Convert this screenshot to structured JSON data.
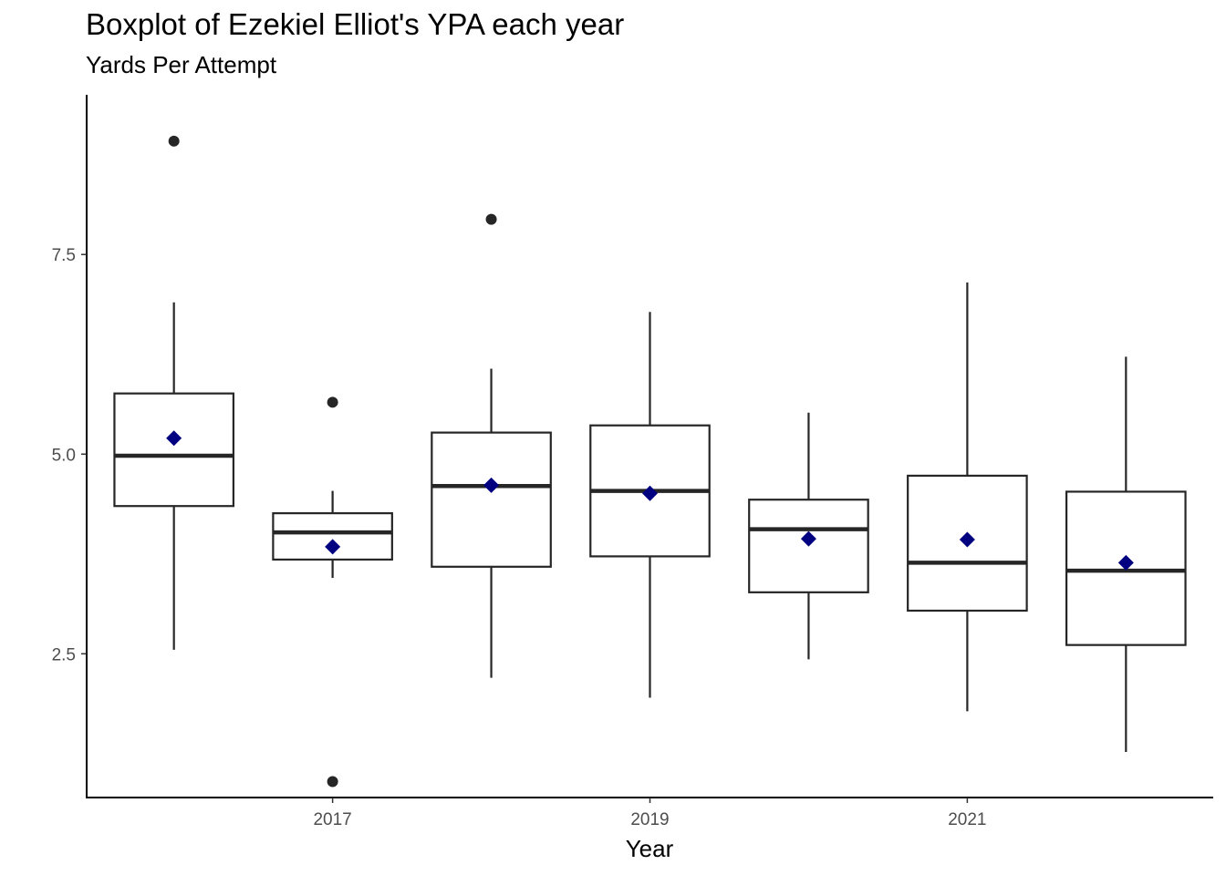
{
  "chart_data": {
    "type": "boxplot",
    "title": "Boxplot of Ezekiel Elliot's YPA each year",
    "subtitle": "Yards Per Attempt",
    "xlabel": "Year",
    "ylabel": "",
    "x_ticks": [
      "2017",
      "2019",
      "2021"
    ],
    "y_ticks": [
      "2.5",
      "5.0",
      "7.5"
    ],
    "xlim": [
      2015.45,
      2022.55
    ],
    "ylim": [
      0.7,
      9.5
    ],
    "grid": false,
    "legend": "none",
    "colors": {
      "box": "#262626",
      "mean": "#000080",
      "outlier": "#262626"
    },
    "boxes": [
      {
        "year": 2016,
        "whisker_low": 2.55,
        "q1": 4.35,
        "median": 4.98,
        "q3": 5.76,
        "whisker_high": 6.9,
        "mean": 5.2,
        "outliers": [
          8.92
        ]
      },
      {
        "year": 2017,
        "whisker_low": 3.45,
        "q1": 3.68,
        "median": 4.02,
        "q3": 4.26,
        "whisker_high": 4.54,
        "mean": 3.84,
        "outliers": [
          5.65,
          0.9
        ]
      },
      {
        "year": 2018,
        "whisker_low": 2.2,
        "q1": 3.59,
        "median": 4.6,
        "q3": 5.27,
        "whisker_high": 6.07,
        "mean": 4.61,
        "outliers": [
          7.94
        ]
      },
      {
        "year": 2019,
        "whisker_low": 1.95,
        "q1": 3.72,
        "median": 4.54,
        "q3": 5.36,
        "whisker_high": 6.78,
        "mean": 4.51,
        "outliers": []
      },
      {
        "year": 2020,
        "whisker_low": 2.43,
        "q1": 3.27,
        "median": 4.06,
        "q3": 4.43,
        "whisker_high": 5.52,
        "mean": 3.94,
        "outliers": []
      },
      {
        "year": 2021,
        "whisker_low": 1.78,
        "q1": 3.04,
        "median": 3.64,
        "q3": 4.73,
        "whisker_high": 7.15,
        "mean": 3.93,
        "outliers": []
      },
      {
        "year": 2022,
        "whisker_low": 1.27,
        "q1": 2.61,
        "median": 3.54,
        "q3": 4.53,
        "whisker_high": 6.22,
        "mean": 3.64,
        "outliers": []
      }
    ]
  }
}
